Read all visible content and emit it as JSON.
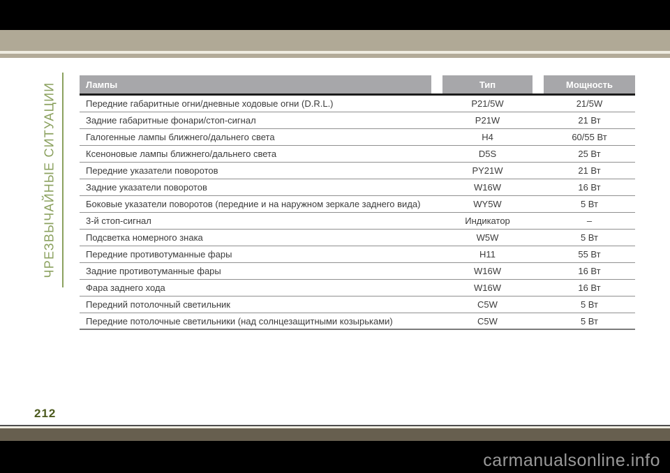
{
  "page": {
    "sidebar_label": "ЧРЕЗВЫЧАЙНЫЕ СИТУАЦИИ",
    "page_number": "212",
    "watermark": "carmanualsonline.info"
  },
  "colors": {
    "top_tan_bar": "#b0a996",
    "bottom_olive_bar": "#675f4f",
    "sidebar_green": "#8ba15f",
    "page_number_green": "#4c5a1e",
    "table_header_bg": "#a7a7aa",
    "table_header_text": "#ffffff",
    "row_text": "#3c3c3c",
    "watermark_gray": "#999999"
  },
  "table": {
    "columns": [
      "Лампы",
      "Тип",
      "Мощность"
    ],
    "rows": [
      {
        "lamp": "Передние габаритные огни/дневные ходовые огни (D.R.L.)",
        "type": "P21/5W",
        "power": "21/5W"
      },
      {
        "lamp": "Задние габаритные фонари/стоп-сигнал",
        "type": "P21W",
        "power": "21 Вт"
      },
      {
        "lamp": "Галогенные лампы ближнего/дальнего света",
        "type": "H4",
        "power": "60/55 Вт"
      },
      {
        "lamp": "Ксеноновые лампы ближнего/дальнего света",
        "type": "D5S",
        "power": "25 Вт"
      },
      {
        "lamp": "Передние указатели поворотов",
        "type": "PY21W",
        "power": "21 Вт"
      },
      {
        "lamp": "Задние указатели поворотов",
        "type": "W16W",
        "power": "16 Вт"
      },
      {
        "lamp": "Боковые указатели поворотов (передние и на наружном зеркале заднего вида)",
        "type": "WY5W",
        "power": "5 Вт"
      },
      {
        "lamp": "3-й стоп-сигнал",
        "type": "Индикатор",
        "power": "–"
      },
      {
        "lamp": "Подсветка номерного знака",
        "type": "W5W",
        "power": "5 Вт"
      },
      {
        "lamp": "Передние противотуманные фары",
        "type": "H11",
        "power": "55 Вт"
      },
      {
        "lamp": "Задние противотуманные фары",
        "type": "W16W",
        "power": "16 Вт"
      },
      {
        "lamp": "Фара заднего хода",
        "type": "W16W",
        "power": "16 Вт"
      },
      {
        "lamp": "Передний потолочный светильник",
        "type": "C5W",
        "power": "5 Вт"
      },
      {
        "lamp": "Передние потолочные светильники (над солнцезащитными козырьками)",
        "type": "C5W",
        "power": "5 Вт"
      }
    ]
  }
}
